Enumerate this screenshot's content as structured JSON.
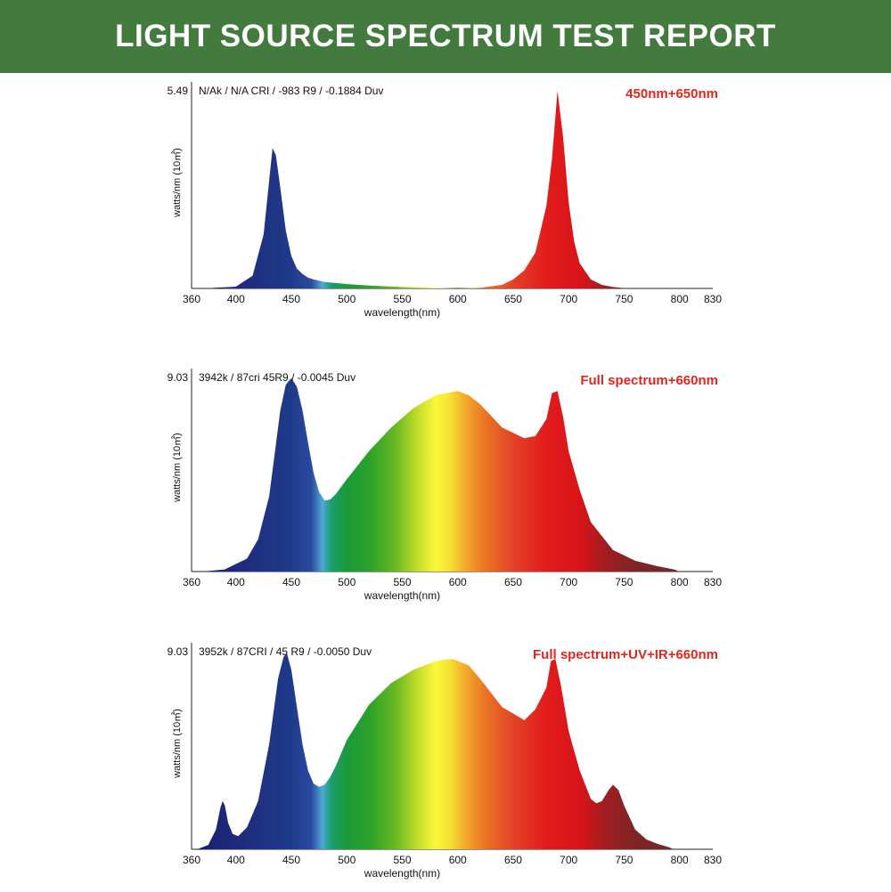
{
  "page": {
    "title": "LIGHT SOURCE SPECTRUM TEST REPORT",
    "banner_color": "#437a3e",
    "label_color": "#e0261f"
  },
  "chart_data": [
    {
      "type": "area",
      "label": "450nm+650nm",
      "annotation": "N/Ak / N/A CRI / -983 R9 / -0.1884 Duv",
      "ymax_label": "5.49",
      "ylabel": "watts/nm (10㎡)",
      "xlabel": "wavelength(nm)",
      "xlim": [
        360,
        830
      ],
      "ylim": [
        0,
        5.49
      ],
      "x_ticks": [
        "360",
        "400",
        "450",
        "500",
        "550",
        "600",
        "650",
        "700",
        "750",
        "800",
        "830"
      ],
      "fill": "spectrum",
      "series": [
        {
          "x": [
            370,
            400,
            415,
            425,
            430,
            433,
            436,
            440,
            445,
            450,
            455,
            460,
            465,
            470,
            480,
            500,
            520,
            550,
            600,
            620,
            640,
            650,
            660,
            670,
            680,
            685,
            690,
            695,
            700,
            705,
            710,
            720,
            730,
            740,
            750,
            760
          ],
          "y": [
            0,
            0.05,
            0.35,
            1.5,
            3,
            3.9,
            3.7,
            2.8,
            1.6,
            0.9,
            0.55,
            0.4,
            0.3,
            0.25,
            0.18,
            0.12,
            0.08,
            0.04,
            0,
            0.02,
            0.1,
            0.25,
            0.5,
            1.0,
            2.3,
            3.6,
            5.49,
            4.2,
            2.4,
            1.3,
            0.7,
            0.25,
            0.1,
            0.04,
            0.01,
            0
          ]
        }
      ]
    },
    {
      "type": "area",
      "label": "Full spectrum+660nm",
      "annotation": "3942k / 87cri 45R9 / -0.0045 Duv",
      "ymax_label": "9.03",
      "ylabel": "watts/nm (10㎡)",
      "xlabel": "wavelength(nm)",
      "xlim": [
        360,
        830
      ],
      "ylim": [
        0,
        9.03
      ],
      "x_ticks": [
        "360",
        "400",
        "450",
        "500",
        "550",
        "600",
        "650",
        "700",
        "750",
        "800",
        "830"
      ],
      "fill": "spectrum",
      "series": [
        {
          "x": [
            370,
            390,
            410,
            420,
            430,
            440,
            445,
            450,
            455,
            460,
            465,
            470,
            475,
            480,
            485,
            490,
            500,
            520,
            540,
            560,
            580,
            600,
            610,
            620,
            640,
            660,
            670,
            680,
            685,
            690,
            695,
            700,
            710,
            720,
            740,
            760,
            780,
            795,
            800
          ],
          "y": [
            0,
            0.1,
            0.6,
            1.5,
            3.5,
            7.5,
            8.7,
            9.0,
            8.6,
            7.5,
            6.0,
            4.6,
            3.7,
            3.3,
            3.35,
            3.6,
            4.3,
            5.6,
            6.7,
            7.6,
            8.2,
            8.4,
            8.2,
            7.8,
            6.7,
            6.2,
            6.3,
            7.1,
            8.3,
            8.4,
            7.2,
            5.6,
            3.8,
            2.3,
            1.0,
            0.5,
            0.25,
            0.1,
            0
          ]
        }
      ]
    },
    {
      "type": "area",
      "label": "Full spectrum+UV+IR+660nm",
      "annotation": "3952k / 87CRI / 45 R9 / -0.0050 Duv",
      "ymax_label": "9.03",
      "ylabel": "watts/nm (10㎡)",
      "xlabel": "wavelength(nm)",
      "xlim": [
        360,
        830
      ],
      "ylim": [
        0,
        9.03
      ],
      "x_ticks": [
        "360",
        "400",
        "450",
        "500",
        "550",
        "600",
        "650",
        "700",
        "750",
        "800",
        "830"
      ],
      "fill": "spectrum",
      "series": [
        {
          "x": [
            365,
            375,
            382,
            386,
            388,
            390,
            393,
            397,
            402,
            410,
            420,
            430,
            438,
            443,
            446,
            450,
            455,
            460,
            465,
            470,
            475,
            480,
            485,
            490,
            500,
            520,
            540,
            560,
            580,
            595,
            610,
            620,
            640,
            660,
            670,
            680,
            684,
            688,
            693,
            700,
            710,
            720,
            725,
            730,
            736,
            740,
            745,
            750,
            760,
            770,
            780,
            790,
            795
          ],
          "y": [
            0,
            0.2,
            0.9,
            1.9,
            2.2,
            2.0,
            1.2,
            0.7,
            0.6,
            1.0,
            2.2,
            4.8,
            7.8,
            8.8,
            8.95,
            8.2,
            6.5,
            4.8,
            3.6,
            3.0,
            2.85,
            2.95,
            3.3,
            3.8,
            5.0,
            6.6,
            7.6,
            8.2,
            8.6,
            8.7,
            8.4,
            7.8,
            6.5,
            5.9,
            6.4,
            7.4,
            8.6,
            8.7,
            7.5,
            5.4,
            3.6,
            2.3,
            2.1,
            2.2,
            2.7,
            2.95,
            2.7,
            2.0,
            0.9,
            0.45,
            0.25,
            0.1,
            0
          ]
        }
      ]
    }
  ]
}
